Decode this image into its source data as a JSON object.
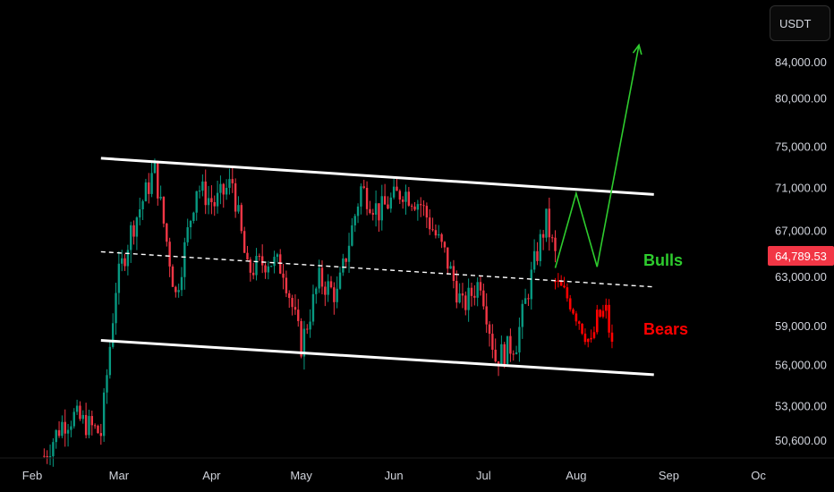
{
  "currency": "USDT",
  "last_price": "64,789.53",
  "colors": {
    "background": "#000000",
    "up_candle": "#089981",
    "down_candle": "#f23645",
    "channel": "#ffffff",
    "bull_path": "#2ecc2e",
    "bear_path": "#ff0000",
    "price_tag": "#f23645"
  },
  "chart_data": {
    "type": "candlestick",
    "symbol_quote": "USDT",
    "x_tick_labels": [
      "Feb",
      "Mar",
      "Apr",
      "May",
      "Jun",
      "Jul",
      "Aug",
      "Sep",
      "Oc"
    ],
    "y_tick_labels": [
      "84,000.00",
      "80,000.00",
      "75,000.00",
      "71,000.00",
      "67,000.00",
      "63,000.00",
      "59,000.00",
      "56,000.00",
      "53,000.00",
      "50,600.00"
    ],
    "y_tick_values": [
      84000,
      80000,
      75000,
      71000,
      67000,
      63000,
      59000,
      56000,
      53000,
      50600
    ],
    "y_scale": "log",
    "current_price": 64789.53,
    "annotations": [
      {
        "text": "Bulls",
        "color": "#2ecc2e"
      },
      {
        "text": "Bears",
        "color": "#ff0000"
      }
    ],
    "channel": {
      "upper": [
        {
          "x": "2024-02-24",
          "y": 73900
        },
        {
          "x": "2024-08-27",
          "y": 70400
        }
      ],
      "middle": [
        {
          "x": "2024-02-24",
          "y": 65200
        },
        {
          "x": "2024-08-27",
          "y": 62200
        }
      ],
      "lower": [
        {
          "x": "2024-02-24",
          "y": 57900
        },
        {
          "x": "2024-08-27",
          "y": 55300
        }
      ]
    },
    "bull_projection": [
      {
        "x": "2024-07-25",
        "y": 63800
      },
      {
        "x": "2024-08-01",
        "y": 70500
      },
      {
        "x": "2024-08-08",
        "y": 63900
      },
      {
        "x": "2024-08-22",
        "y": 86000
      }
    ],
    "ohlc_keypoints": [
      {
        "x": "2024-02-05",
        "y": 49600
      },
      {
        "x": "2024-02-11",
        "y": 51800
      },
      {
        "x": "2024-02-15",
        "y": 52300
      },
      {
        "x": "2024-02-24",
        "y": 51100
      },
      {
        "x": "2024-02-29",
        "y": 62200
      },
      {
        "x": "2024-03-05",
        "y": 67000
      },
      {
        "x": "2024-03-13",
        "y": 72800
      },
      {
        "x": "2024-03-20",
        "y": 61500
      },
      {
        "x": "2024-03-27",
        "y": 71200
      },
      {
        "x": "2024-04-02",
        "y": 69500
      },
      {
        "x": "2024-04-08",
        "y": 71600
      },
      {
        "x": "2024-04-13",
        "y": 63500
      },
      {
        "x": "2024-04-20",
        "y": 64500
      },
      {
        "x": "2024-04-25",
        "y": 63800
      },
      {
        "x": "2024-05-01",
        "y": 57500
      },
      {
        "x": "2024-05-07",
        "y": 62800
      },
      {
        "x": "2024-05-13",
        "y": 61500
      },
      {
        "x": "2024-05-21",
        "y": 71000
      },
      {
        "x": "2024-05-27",
        "y": 68800
      },
      {
        "x": "2024-06-04",
        "y": 70800
      },
      {
        "x": "2024-06-10",
        "y": 69500
      },
      {
        "x": "2024-06-18",
        "y": 65000
      },
      {
        "x": "2024-06-24",
        "y": 60500
      },
      {
        "x": "2024-06-30",
        "y": 62800
      },
      {
        "x": "2024-07-05",
        "y": 56500
      },
      {
        "x": "2024-07-12",
        "y": 57800
      },
      {
        "x": "2024-07-18",
        "y": 64200
      },
      {
        "x": "2024-07-22",
        "y": 68000
      },
      {
        "x": "2024-07-25",
        "y": 64789.53
      }
    ],
    "bear_projection_keypoints": [
      {
        "x": "2024-07-25",
        "y": 62600
      },
      {
        "x": "2024-07-30",
        "y": 61000
      },
      {
        "x": "2024-08-03",
        "y": 59000
      },
      {
        "x": "2024-08-06",
        "y": 57500
      },
      {
        "x": "2024-08-08",
        "y": 59600
      },
      {
        "x": "2024-08-11",
        "y": 60200
      },
      {
        "x": "2024-08-14",
        "y": 56000
      }
    ]
  }
}
